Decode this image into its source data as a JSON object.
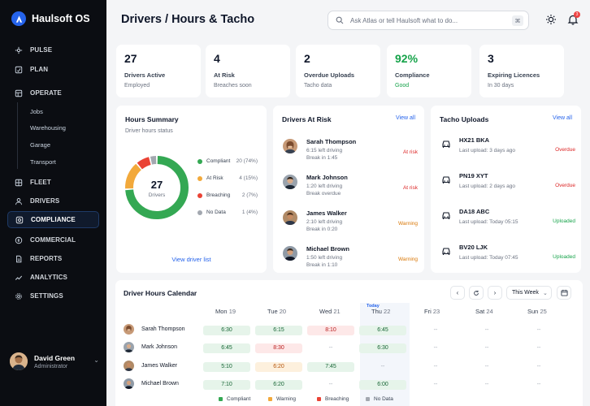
{
  "app": {
    "name": "Haulsoft OS"
  },
  "nav": [
    {
      "label": "PULSE",
      "icon": "pulse-icon"
    },
    {
      "label": "PLAN",
      "icon": "plan-icon"
    },
    {
      "label": "OPERATE",
      "icon": "operate-icon"
    },
    {
      "label": "FLEET",
      "icon": "fleet-icon"
    },
    {
      "label": "DRIVERS",
      "icon": "drivers-icon"
    },
    {
      "label": "COMPLIANCE",
      "icon": "compliance-icon",
      "active": true
    },
    {
      "label": "COMMERCIAL",
      "icon": "commercial-icon"
    },
    {
      "label": "REPORTS",
      "icon": "reports-icon"
    },
    {
      "label": "ANALYTICS",
      "icon": "analytics-icon"
    },
    {
      "label": "SETTINGS",
      "icon": "settings-icon"
    }
  ],
  "operate_sub": [
    "Jobs",
    "Warehousing",
    "Garage",
    "Transport"
  ],
  "user": {
    "name": "David Green",
    "role": "Administrator"
  },
  "header": {
    "title": "Drivers / Hours & Tacho",
    "search_placeholder": "Ask Atlas or tell Haulsoft what to do...",
    "kbd": "⌘",
    "bell_count": "3"
  },
  "kpis": [
    {
      "value": "27",
      "label": "Drivers Active",
      "sub": "Employed",
      "color": "#0f172a"
    },
    {
      "value": "4",
      "label": "At Risk",
      "sub": "Breaches soon",
      "color": "#0f172a"
    },
    {
      "value": "2",
      "label": "Overdue Uploads",
      "sub": "Tacho data",
      "color": "#0f172a"
    },
    {
      "value": "92%",
      "label": "Compliance",
      "sub": "Good",
      "color": "#16a34a",
      "sub_color": "#16a34a"
    },
    {
      "value": "3",
      "label": "Expiring Licences",
      "sub": "In 30 days",
      "color": "#0f172a"
    }
  ],
  "hours_summary": {
    "title": "Hours Summary",
    "subtitle": "Driver hours status",
    "total": "27",
    "total_label": "Drivers",
    "link": "View driver list",
    "legend": [
      {
        "name": "Compliant",
        "value": "20 (74%)",
        "color": "#34a853"
      },
      {
        "name": "At Risk",
        "value": "4 (15%)",
        "color": "#f2a93b"
      },
      {
        "name": "Breaching",
        "value": "2 (7%)",
        "color": "#ea4335"
      },
      {
        "name": "No Data",
        "value": "1 (4%)",
        "color": "#a3a8b0"
      }
    ]
  },
  "chart_data": {
    "type": "pie",
    "categories": [
      "Compliant",
      "At Risk",
      "Breaching",
      "No Data"
    ],
    "values": [
      20,
      4,
      2,
      1
    ],
    "colors": [
      "#34a853",
      "#f2a93b",
      "#ea4335",
      "#a3a8b0"
    ]
  },
  "drivers_at_risk": {
    "title": "Drivers At Risk",
    "view_all": "View all",
    "items": [
      {
        "name": "Sarah Thompson",
        "left": "6:15 left driving",
        "detail": "Break in 1:45",
        "status": "At risk",
        "status_color": "#dc2626"
      },
      {
        "name": "Mark Johnson",
        "left": "1:20 left driving",
        "detail": "Break overdue",
        "status": "At risk",
        "status_color": "#dc2626"
      },
      {
        "name": "James Walker",
        "left": "2:10 left driving",
        "detail": "Break in 0:20",
        "status": "Warning",
        "status_color": "#d97706"
      },
      {
        "name": "Michael Brown",
        "left": "1:50 left driving",
        "detail": "Break in 1:10",
        "status": "Warning",
        "status_color": "#d97706"
      }
    ]
  },
  "tacho": {
    "title": "Tacho Uploads",
    "view_all": "View all",
    "items": [
      {
        "reg": "HX21 BKA",
        "last": "Last upload: 3 days ago",
        "status": "Overdue",
        "status_color": "#dc2626"
      },
      {
        "reg": "PN19 XYT",
        "last": "Last upload: 2 days ago",
        "status": "Overdue",
        "status_color": "#dc2626"
      },
      {
        "reg": "DA18 ABC",
        "last": "Last upload: Today 05:15",
        "status": "Uploaded",
        "status_color": "#16a34a"
      },
      {
        "reg": "BV20 LJK",
        "last": "Last upload: Today 07:45",
        "status": "Uploaded",
        "status_color": "#16a34a"
      }
    ]
  },
  "calendar": {
    "title": "Driver Hours Calendar",
    "range": "This Week",
    "days": [
      {
        "name": "Mon",
        "num": "19"
      },
      {
        "name": "Tue",
        "num": "20"
      },
      {
        "name": "Wed",
        "num": "21"
      },
      {
        "name": "Thu",
        "num": "22",
        "today": true
      },
      {
        "name": "Fri",
        "num": "23"
      },
      {
        "name": "Sat",
        "num": "24"
      },
      {
        "name": "Sun",
        "num": "25"
      }
    ],
    "today_tag": "Today",
    "rows": [
      {
        "name": "Sarah Thompson",
        "cells": [
          {
            "v": "6:30",
            "s": "green"
          },
          {
            "v": "6:15",
            "s": "green"
          },
          {
            "v": "8:10",
            "s": "red"
          },
          {
            "v": "6:45",
            "s": "green"
          },
          {
            "v": "--",
            "s": "none"
          },
          {
            "v": "--",
            "s": "none"
          },
          {
            "v": "--",
            "s": "none"
          }
        ]
      },
      {
        "name": "Mark Johnson",
        "cells": [
          {
            "v": "6:45",
            "s": "green"
          },
          {
            "v": "8:30",
            "s": "red"
          },
          {
            "v": "--",
            "s": "none"
          },
          {
            "v": "6:30",
            "s": "green"
          },
          {
            "v": "--",
            "s": "none"
          },
          {
            "v": "--",
            "s": "none"
          },
          {
            "v": "--",
            "s": "none"
          }
        ]
      },
      {
        "name": "James Walker",
        "cells": [
          {
            "v": "5:10",
            "s": "green"
          },
          {
            "v": "6:20",
            "s": "orange"
          },
          {
            "v": "7:45",
            "s": "green"
          },
          {
            "v": "--",
            "s": "none"
          },
          {
            "v": "--",
            "s": "none"
          },
          {
            "v": "--",
            "s": "none"
          },
          {
            "v": "--",
            "s": "none"
          }
        ]
      },
      {
        "name": "Michael Brown",
        "cells": [
          {
            "v": "7:10",
            "s": "green"
          },
          {
            "v": "6:20",
            "s": "green"
          },
          {
            "v": "--",
            "s": "none"
          },
          {
            "v": "6:00",
            "s": "green"
          },
          {
            "v": "--",
            "s": "none"
          },
          {
            "v": "--",
            "s": "none"
          },
          {
            "v": "--",
            "s": "none"
          }
        ]
      }
    ],
    "legend": [
      {
        "name": "Compliant",
        "color": "#34a853"
      },
      {
        "name": "Warning",
        "color": "#f2a93b"
      },
      {
        "name": "Breaching",
        "color": "#ea4335"
      },
      {
        "name": "No Data",
        "color": "#a3a8b0"
      }
    ]
  }
}
